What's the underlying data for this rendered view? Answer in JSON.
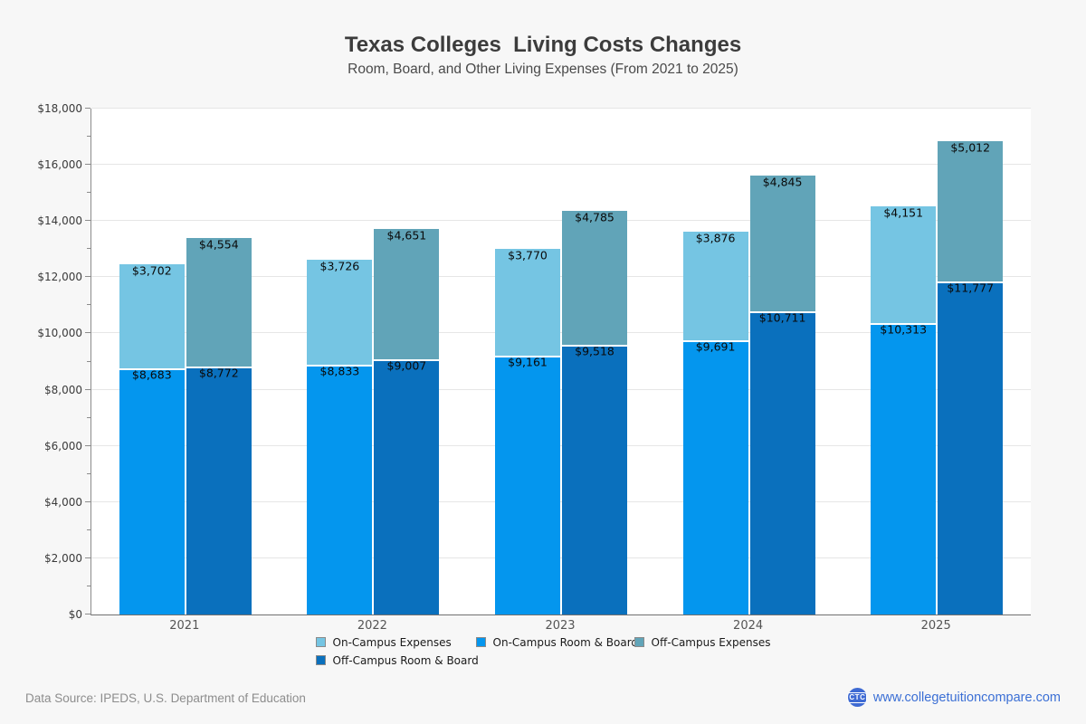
{
  "header": {
    "title": "Texas Colleges  Living Costs Changes",
    "subtitle": "Room, Board, and Other Living Expenses (From 2021 to 2025)"
  },
  "chart_data": {
    "type": "bar",
    "stacked": true,
    "title": "Texas Colleges  Living Costs Changes",
    "subtitle": "Room, Board, and Other Living Expenses (From 2021 to 2025)",
    "categories": [
      "2021",
      "2022",
      "2023",
      "2024",
      "2025"
    ],
    "series": [
      {
        "name": "On-Campus Room & Board",
        "stack": "on-campus",
        "color": "#0496ee",
        "values": [
          8683,
          8833,
          9161,
          9691,
          10313
        ]
      },
      {
        "name": "On-Campus Expenses",
        "stack": "on-campus",
        "color": "#75c5e3",
        "values": [
          3702,
          3726,
          3770,
          3876,
          4151
        ]
      },
      {
        "name": "Off-Campus Room & Board",
        "stack": "off-campus",
        "color": "#0a70bd",
        "values": [
          8772,
          9007,
          9518,
          10711,
          11777
        ]
      },
      {
        "name": "Off-Campus Expenses",
        "stack": "off-campus",
        "color": "#61a4b8",
        "values": [
          4554,
          4651,
          4785,
          4845,
          5012
        ]
      }
    ],
    "xlabel": "",
    "ylabel": "",
    "ylim": [
      0,
      18000
    ],
    "ytick_step": 2000,
    "minor_tick_step": 1000,
    "grid": true,
    "legend_position": "bottom",
    "value_label_format": "$#,###"
  },
  "legend": {
    "items": [
      {
        "label": "On-Campus Expenses",
        "color": "#75c5e3"
      },
      {
        "label": "On-Campus Room & Board",
        "color": "#0496ee"
      },
      {
        "label": "Off-Campus Expenses",
        "color": "#61a4b8"
      },
      {
        "label": "Off-Campus Room & Board",
        "color": "#0a70bd"
      }
    ]
  },
  "footer": {
    "source": "Data Source: IPEDS, U.S. Department of Education",
    "logo": "CTC",
    "website": "www.collegetuitioncompare.com"
  }
}
